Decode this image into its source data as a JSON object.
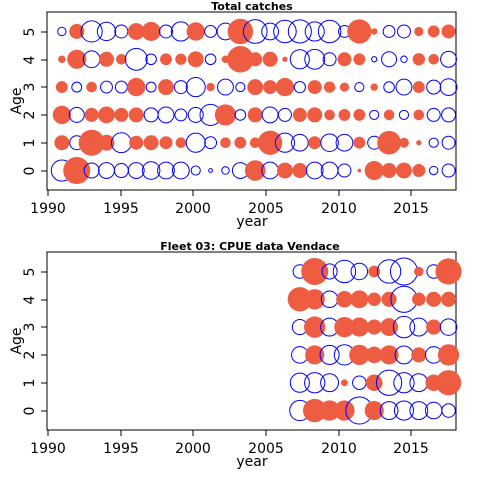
{
  "colors": {
    "positive": "#ee5c42",
    "negative": "#0000ff",
    "axis": "#000000"
  },
  "chart_data": [
    {
      "type": "scatter",
      "subtype": "bubble-residuals",
      "title": "Total catches",
      "xlabel": "year",
      "ylabel": "Age",
      "xlim": [
        1990,
        2017.5
      ],
      "ylim": [
        -0.7,
        5.7
      ],
      "xticks": [
        "1990",
        "1995",
        "2000",
        "2005",
        "2010",
        "2015"
      ],
      "yticks": [
        "0",
        "1",
        "2",
        "3",
        "4",
        "5"
      ],
      "years": [
        1991,
        1992,
        1993,
        1994,
        1995,
        1996,
        1997,
        1998,
        1999,
        2000,
        2001,
        2002,
        2003,
        2004,
        2005,
        2006,
        2007,
        2008,
        2009,
        2010,
        2011,
        2012,
        2013,
        2014,
        2015,
        2016,
        2017
      ],
      "series": [
        {
          "age": 0,
          "residuals": [
            -1.6,
            2.6,
            -0.8,
            -0.9,
            -0.7,
            -0.9,
            -1.1,
            -1.0,
            -1.0,
            -0.3,
            -0.05,
            -0.2,
            -0.9,
            1.5,
            -1.0,
            0.9,
            0.8,
            -1.0,
            -1.0,
            -0.6,
            0.05,
            1.3,
            0.8,
            0.9,
            0.6,
            -0.25,
            -0.6
          ]
        },
        {
          "age": 1,
          "residuals": [
            0.8,
            -0.7,
            2.4,
            0.9,
            -1.4,
            0.7,
            0.8,
            0.6,
            0.4,
            -1.3,
            -0.5,
            0.4,
            0.5,
            0.4,
            2.1,
            -1.3,
            -1.0,
            0.6,
            -1.1,
            -1.0,
            0.5,
            -0.6,
            2.0,
            0.35,
            0.1,
            -0.3,
            -0.6
          ]
        },
        {
          "age": 2,
          "residuals": [
            1.2,
            -0.8,
            0.7,
            1.0,
            0.7,
            0.8,
            -0.7,
            -0.9,
            -0.5,
            -0.8,
            -1.6,
            1.6,
            -0.4,
            0.8,
            -0.9,
            -0.6,
            0.7,
            0.8,
            0.4,
            0.5,
            0.5,
            -0.3,
            0.4,
            -0.3,
            0.4,
            -0.6,
            -0.7
          ]
        },
        {
          "age": 3,
          "residuals": [
            0.5,
            -0.35,
            0.4,
            -0.5,
            -0.5,
            1.2,
            -0.35,
            0.9,
            -0.6,
            -1.3,
            0.25,
            -0.9,
            -0.3,
            0.9,
            0.7,
            1.2,
            -0.45,
            0.7,
            0.45,
            0.3,
            -0.3,
            0.2,
            -0.4,
            -0.9,
            0.5,
            -0.7,
            -1.0
          ]
        },
        {
          "age": 4,
          "residuals": [
            0.2,
            1.3,
            -1.0,
            0.8,
            0.4,
            -1.7,
            -0.4,
            0.5,
            0.45,
            0.9,
            -0.4,
            0.2,
            2.5,
            0.7,
            0.8,
            0.1,
            -1.3,
            -1.4,
            -0.6,
            0.7,
            0.5,
            -0.1,
            -0.8,
            -0.15,
            0.55,
            0.4,
            -0.9
          ]
        },
        {
          "age": 5,
          "residuals": [
            -0.25,
            0.8,
            -1.6,
            -1.2,
            -0.6,
            1.0,
            1.3,
            -0.6,
            -1.3,
            1.2,
            -0.5,
            -1.0,
            2.3,
            -2.0,
            -1.0,
            -1.8,
            -1.9,
            -1.3,
            -1.8,
            -0.5,
            2.1,
            0.15,
            -0.5,
            -0.6,
            0.3,
            0.5,
            0.7
          ]
        }
      ]
    },
    {
      "type": "scatter",
      "subtype": "bubble-residuals",
      "title": "Fleet 03:  CPUE data Vendace",
      "xlabel": "year",
      "ylabel": "Age",
      "xlim": [
        1990,
        2017.5
      ],
      "ylim": [
        -0.7,
        5.7
      ],
      "xticks": [
        "1990",
        "1995",
        "2000",
        "2005",
        "2010",
        "2015"
      ],
      "yticks": [
        "0",
        "1",
        "2",
        "3",
        "4",
        "5"
      ],
      "years": [
        2007,
        2008,
        2009,
        2010,
        2011,
        2012,
        2013,
        2014,
        2015,
        2016,
        2017
      ],
      "series": [
        {
          "age": 0,
          "residuals": [
            -0.9,
            1.2,
            0.9,
            0.9,
            -1.6,
            0.8,
            -0.7,
            -0.8,
            -0.7,
            -0.6,
            -0.4
          ]
        },
        {
          "age": 1,
          "residuals": [
            -0.8,
            -0.9,
            -0.7,
            0.1,
            -0.4,
            0.6,
            -1.4,
            -0.9,
            -0.7,
            0.6,
            1.4
          ]
        },
        {
          "age": 2,
          "residuals": [
            -0.6,
            0.8,
            -0.8,
            -0.9,
            0.9,
            0.6,
            0.8,
            -0.7,
            0.5,
            -0.6,
            1.0
          ]
        },
        {
          "age": 3,
          "residuals": [
            -0.5,
            1.0,
            -0.7,
            0.9,
            0.8,
            0.5,
            0.7,
            -1.0,
            -0.7,
            0.5,
            -0.6
          ]
        },
        {
          "age": 4,
          "residuals": [
            1.3,
            0.9,
            -0.6,
            0.6,
            0.7,
            0.4,
            0.5,
            -1.5,
            0.4,
            0.5,
            0.5
          ]
        },
        {
          "age": 5,
          "residuals": [
            -0.4,
            1.6,
            -0.5,
            -1.1,
            -0.6,
            0.3,
            -1.2,
            -1.6,
            0.2,
            -0.4,
            1.5
          ]
        }
      ]
    }
  ]
}
